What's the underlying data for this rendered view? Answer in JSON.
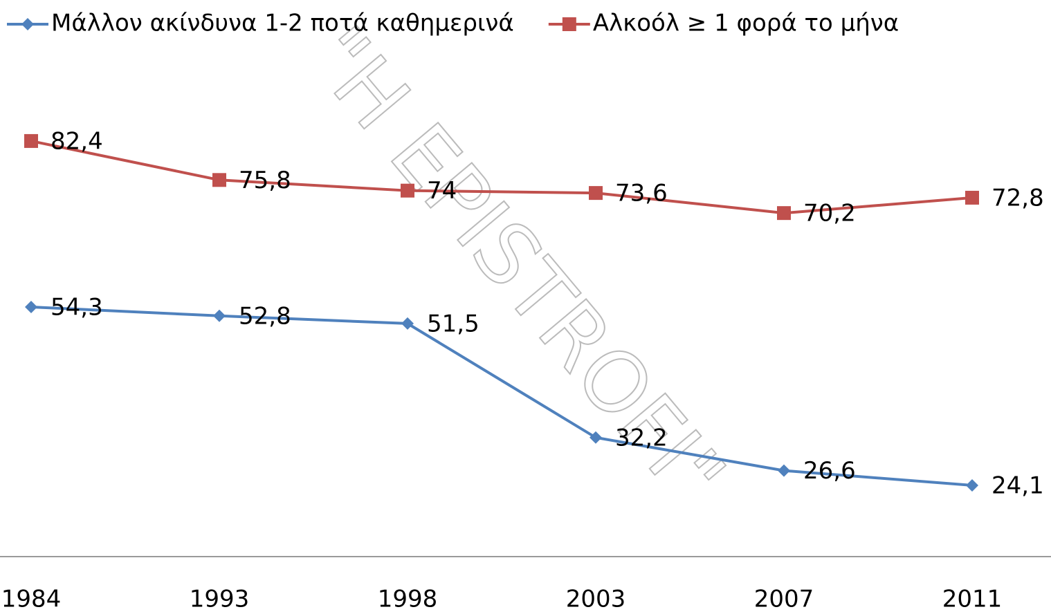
{
  "chart_data": {
    "type": "line",
    "categories": [
      "1984",
      "1993",
      "1998",
      "2003",
      "2007",
      "2011"
    ],
    "series": [
      {
        "name": "Μάλλον ακίνδυνα 1-2 ποτά καθημερινά",
        "color": "#4f81bd",
        "marker": "diamond",
        "values": [
          54.3,
          52.8,
          51.5,
          32.2,
          26.6,
          24.1
        ],
        "value_labels": [
          "54,3",
          "52,8",
          "51,5",
          "32,2",
          "26,6",
          "24,1"
        ]
      },
      {
        "name": "Αλκοόλ ≥  1 φορά το μήνα",
        "color": "#c0504d",
        "marker": "square",
        "values": [
          82.4,
          75.8,
          74,
          73.6,
          70.2,
          72.8
        ],
        "value_labels": [
          "82,4",
          "75,8",
          "74",
          "73,6",
          "70,2",
          "72,8"
        ]
      }
    ],
    "ylim": [
      20,
      90
    ],
    "legend": "top",
    "grid": false,
    "watermark": "\"H EPISTROFI\""
  }
}
